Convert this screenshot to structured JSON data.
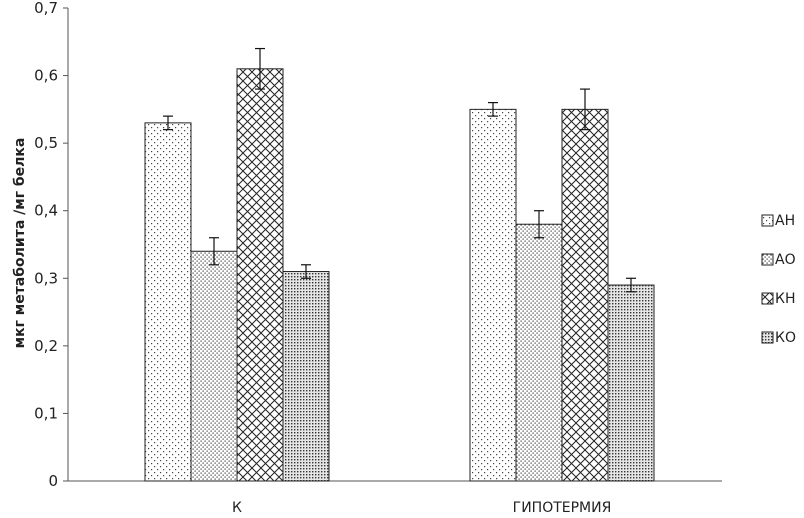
{
  "chart_data": {
    "type": "bar",
    "title": "",
    "xlabel": "",
    "ylabel": "мкг метаболита /мг белка",
    "ylim": [
      0,
      0.7
    ],
    "yticks": [
      "0",
      "0,1",
      "0,2",
      "0,3",
      "0,4",
      "0,5",
      "0,6",
      "0,7"
    ],
    "categories": [
      "К",
      "ГИПОТЕРМИЯ"
    ],
    "series": [
      {
        "name": "АН",
        "values": [
          0.53,
          0.55
        ],
        "errors": [
          0.01,
          0.01
        ],
        "pattern": "sparse-dots"
      },
      {
        "name": "АО",
        "values": [
          0.34,
          0.38
        ],
        "errors": [
          0.02,
          0.02
        ],
        "pattern": "dense-dots"
      },
      {
        "name": "КН",
        "values": [
          0.61,
          0.55
        ],
        "errors": [
          0.03,
          0.03
        ],
        "pattern": "crosshatch"
      },
      {
        "name": "КО",
        "values": [
          0.31,
          0.29
        ],
        "errors": [
          0.01,
          0.01
        ],
        "pattern": "fine-grid"
      }
    ],
    "grid": false,
    "legend": "right"
  }
}
